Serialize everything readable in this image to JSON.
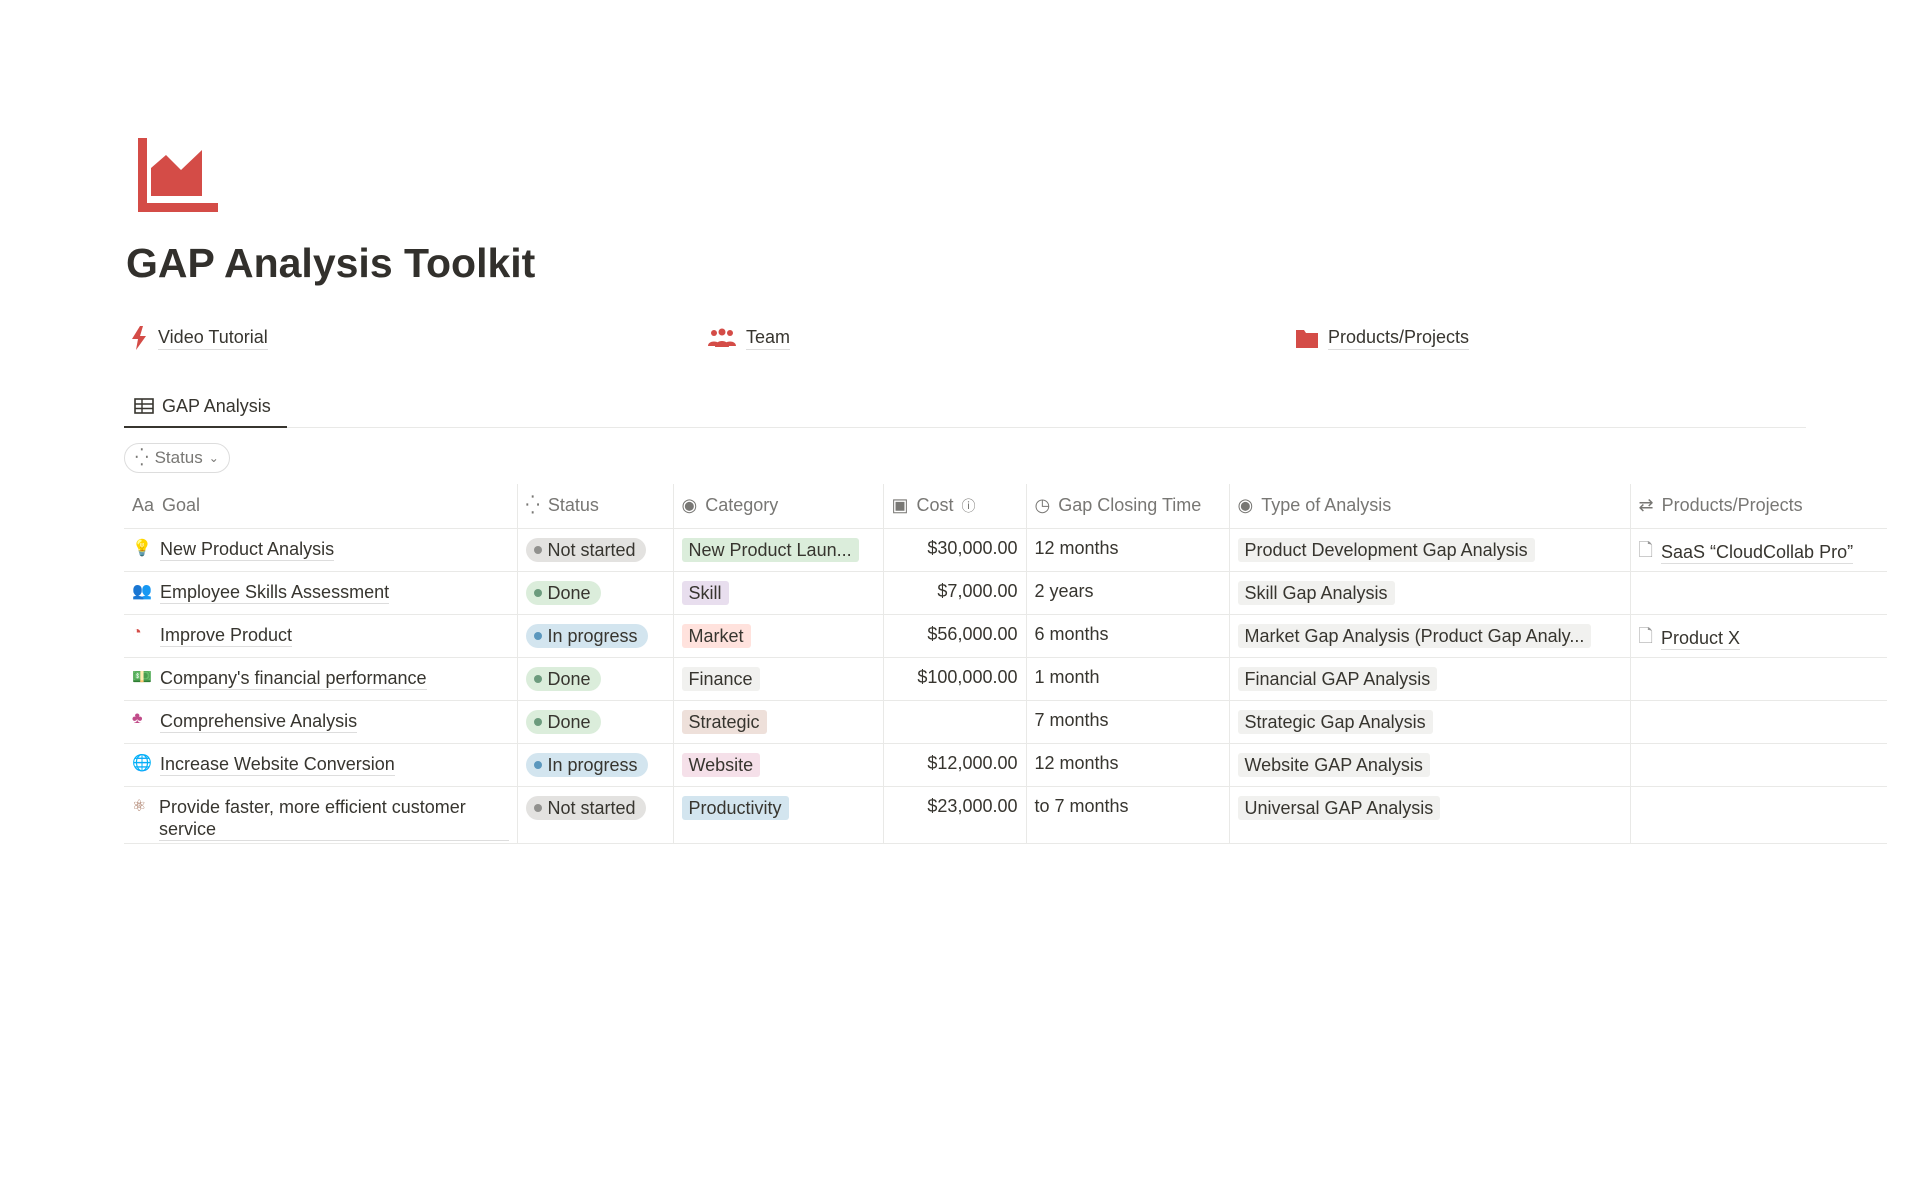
{
  "page": {
    "title": "GAP Analysis Toolkit",
    "icon": "area-chart-icon",
    "accent": "#d44c47"
  },
  "links": [
    {
      "label": "Video Tutorial",
      "icon": "bolt-icon"
    },
    {
      "label": "Team",
      "icon": "people-icon"
    },
    {
      "label": "Products/Projects",
      "icon": "folder-icon"
    }
  ],
  "tabs": [
    {
      "label": "GAP Analysis",
      "icon": "table-icon"
    }
  ],
  "filter": {
    "label": "Status"
  },
  "columns": [
    "Goal",
    "Status",
    "Category",
    "Cost",
    "Gap Closing Time",
    "Type of Analysis",
    "Products/Projects"
  ],
  "rows": [
    {
      "goal": "New Product Analysis",
      "icon": "lightbulb-icon",
      "status": "Not started",
      "category": "New Product Laun...",
      "cost": "$30,000.00",
      "time": "12 months",
      "type": "Product Development Gap Analysis",
      "product": "SaaS “CloudCollab Pro”"
    },
    {
      "goal": "Employee Skills Assessment",
      "icon": "people-icon",
      "status": "Done",
      "category": "Skill",
      "cost": "$7,000.00",
      "time": "2 years",
      "type": "Skill Gap Analysis",
      "product": ""
    },
    {
      "goal": "Improve Product",
      "icon": "pie-chart-icon",
      "status": "In progress",
      "category": "Market",
      "cost": "$56,000.00",
      "time": "6 months",
      "type": "Market Gap Analysis (Product Gap Analy...",
      "product": "Product X"
    },
    {
      "goal": "Company's financial performance",
      "icon": "money-icon",
      "status": "Done",
      "category": "Finance",
      "cost": "$100,000.00",
      "time": "1 month",
      "type": "Financial GAP Analysis",
      "product": ""
    },
    {
      "goal": "Comprehensive Analysis",
      "icon": "hierarchy-icon",
      "status": "Done",
      "category": "Strategic",
      "cost": "",
      "time": "7 months",
      "type": "Strategic Gap Analysis",
      "product": ""
    },
    {
      "goal": "Increase Website Conversion",
      "icon": "globe-icon",
      "status": "In progress",
      "category": "Website",
      "cost": "$12,000.00",
      "time": "12 months",
      "type": "Website GAP Analysis",
      "product": ""
    },
    {
      "goal": "Provide faster, more efficient customer service",
      "icon": "atom-icon",
      "status": "Not started",
      "category": "Productivity",
      "cost": "$23,000.00",
      "time": "to 7 months",
      "type": "Universal GAP Analysis",
      "product": ""
    }
  ],
  "status_colors": {
    "Not started": [
      "#e3e2e0",
      "#91918e"
    ],
    "Done": [
      "#dbeddb",
      "#6c9b7d"
    ],
    "In progress": [
      "#d3e5ef",
      "#5b97bd"
    ]
  },
  "category_colors": {
    "New Product Laun...": "#dbeddb",
    "Skill": "#e8deee",
    "Market": "#ffe2dd",
    "Finance": "#f1f1ef",
    "Strategic": "#eee0da",
    "Website": "#f5e0e9",
    "Productivity": "#d3e5ef"
  }
}
